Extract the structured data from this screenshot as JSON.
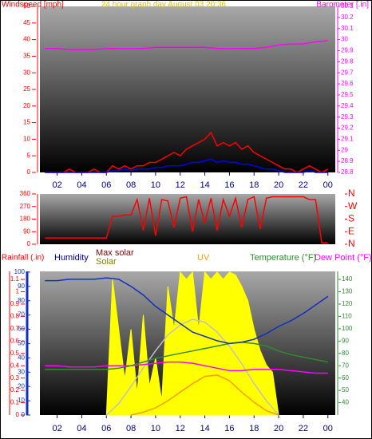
{
  "chart_data": [
    {
      "type": "line",
      "title": "24 hour graph day    August 03 20:36",
      "ylabel": "Windspeed [mph]",
      "y2label": "Barometer [.in]",
      "x": [
        1,
        1.5,
        2,
        2.5,
        3,
        3.5,
        4,
        4.5,
        5,
        5.5,
        6,
        6.5,
        7,
        7.5,
        8,
        8.5,
        9,
        9.5,
        10,
        10.5,
        11,
        11.5,
        12,
        12.5,
        13,
        13.5,
        14,
        14.5,
        15,
        15.5,
        16,
        16.5,
        17,
        17.5,
        18,
        18.5,
        19,
        19.5,
        20,
        20.5,
        21,
        21.5,
        22,
        22.5,
        23,
        23.5,
        24
      ],
      "xlim": [
        0.6,
        24.6
      ],
      "xticks": [
        {
          "value": 2,
          "label": "02"
        },
        {
          "value": 4,
          "label": "04"
        },
        {
          "value": 6,
          "label": "06"
        },
        {
          "value": 8,
          "label": "08"
        },
        10,
        12,
        14,
        16,
        18,
        20,
        22,
        {
          "value": 24,
          "label": "00"
        }
      ],
      "ylim": [
        0,
        50
      ],
      "yticks": [
        0,
        5,
        10,
        15,
        20,
        25,
        30,
        35,
        40,
        45,
        50
      ],
      "y2lim": [
        28.8,
        30.3
      ],
      "y2ticks": [
        28.8,
        28.9,
        29,
        29.1,
        29.2,
        29.3,
        29.4,
        29.5,
        29.6,
        29.7,
        29.8,
        29.9,
        30,
        30.1,
        30.2,
        30.3
      ],
      "series": [
        {
          "color": "#ff0000",
          "values": [
            0,
            0,
            0,
            0,
            1,
            0,
            0,
            0,
            1,
            0,
            0,
            2,
            1,
            2,
            1,
            2,
            2,
            3,
            3,
            4,
            5,
            6,
            5,
            7,
            8,
            9,
            10,
            12,
            8,
            9,
            8,
            9,
            7,
            8,
            6,
            5,
            4,
            3,
            2,
            1,
            1,
            0,
            1,
            2,
            1,
            0,
            1
          ]
        },
        {
          "color": "#0000ff",
          "values": [
            0,
            0,
            0,
            0,
            0,
            0,
            0,
            0,
            0,
            0,
            0,
            0.5,
            0.5,
            1,
            0.5,
            1,
            1,
            1,
            1.5,
            1.5,
            2,
            2,
            2,
            2.5,
            3,
            3,
            3.5,
            4,
            3,
            3.5,
            3,
            3,
            2.5,
            2.5,
            2,
            1.5,
            1,
            1,
            0.5,
            0,
            0,
            0,
            0,
            0.5,
            0,
            0,
            0
          ]
        },
        {
          "color": "#ff00ff",
          "axis": "y2",
          "x": [
            1,
            2,
            3,
            4,
            5,
            6,
            7,
            8,
            9,
            10,
            11,
            12,
            13,
            14,
            15,
            16,
            17,
            18,
            19,
            20,
            21,
            22,
            23,
            24
          ],
          "values": [
            29.92,
            29.92,
            29.91,
            29.91,
            29.91,
            29.92,
            29.92,
            29.92,
            29.92,
            29.93,
            29.93,
            29.93,
            29.93,
            29.93,
            29.92,
            29.92,
            29.92,
            29.92,
            29.93,
            29.95,
            29.96,
            29.96,
            29.98,
            29.99
          ]
        }
      ]
    },
    {
      "type": "line",
      "x": [
        1,
        1.5,
        2,
        2.5,
        3,
        3.5,
        4,
        4.5,
        5,
        5.5,
        6,
        6.5,
        7,
        7.5,
        8,
        8.5,
        9,
        9.5,
        10,
        10.5,
        11,
        11.5,
        12,
        12.5,
        13,
        13.5,
        14,
        14.5,
        15,
        15.5,
        16,
        16.5,
        17,
        17.5,
        18,
        18.5,
        19,
        19.5,
        20,
        20.5,
        21,
        21.5,
        22,
        22.5,
        23,
        23.5,
        24
      ],
      "xlim": [
        0.6,
        24.6
      ],
      "ylim": [
        0,
        360
      ],
      "yticks": [
        0,
        90,
        180,
        270,
        360
      ],
      "y2lim": [
        0,
        360
      ],
      "y2ticks": [
        {
          "value": 0,
          "label": "N"
        },
        {
          "value": 90,
          "label": "E"
        },
        {
          "value": 180,
          "label": "S"
        },
        {
          "value": 270,
          "label": "W"
        },
        {
          "value": 360,
          "label": "N"
        }
      ],
      "series": [
        {
          "color": "#ff0000",
          "values": [
            45,
            45,
            45,
            45,
            45,
            45,
            45,
            45,
            45,
            45,
            45,
            200,
            200,
            210,
            210,
            320,
            100,
            330,
            60,
            320,
            310,
            120,
            330,
            340,
            90,
            320,
            150,
            330,
            100,
            320,
            200,
            330,
            120,
            320,
            340,
            110,
            330,
            340,
            340,
            340,
            340,
            340,
            340,
            320,
            320,
            10,
            10
          ]
        }
      ]
    },
    {
      "type": "line",
      "ylabel": "Rainfall (.in)",
      "x": [
        1,
        2,
        3,
        4,
        5,
        6,
        7,
        8,
        9,
        10,
        11,
        12,
        13,
        14,
        15,
        16,
        17,
        18,
        19,
        20,
        21,
        22,
        23,
        24
      ],
      "xlim": [
        0.6,
        24.6
      ],
      "xticks": [
        {
          "value": 2,
          "label": "02"
        },
        {
          "value": 4,
          "label": "04"
        },
        {
          "value": 6,
          "label": "06"
        },
        {
          "value": 8,
          "label": "08"
        },
        10,
        12,
        14,
        16,
        18,
        20,
        22,
        {
          "value": 24,
          "label": "00"
        }
      ],
      "ylim": [
        0,
        1.165
      ],
      "yticks": [
        0,
        0.1,
        0.2,
        0.3,
        0.4,
        0.5,
        0.6,
        0.7,
        0.8,
        0.9,
        1,
        1.1
      ],
      "y3lim": [
        0,
        100.5
      ],
      "y3ticks": [
        0,
        10,
        20,
        30,
        40,
        50,
        60,
        70,
        80,
        90,
        100
      ],
      "y2lim": [
        30,
        146.5
      ],
      "y2ticks": [
        40,
        50,
        60,
        70,
        80,
        90,
        100,
        110,
        120,
        130,
        140
      ],
      "series": [
        {
          "name": "Solar",
          "type": "area",
          "color": "#ffff00",
          "axis": "y3",
          "x": [
            6,
            6.5,
            7,
            7.5,
            8,
            8.5,
            9,
            9.5,
            10,
            10.5,
            11,
            11.5,
            12,
            12.5,
            13,
            13.5,
            14,
            14.5,
            15,
            15.5,
            16,
            16.5,
            17,
            17.5,
            18,
            18.5,
            19,
            19.5,
            20
          ],
          "values": [
            0,
            95,
            60,
            25,
            60,
            15,
            70,
            20,
            40,
            10,
            90,
            60,
            100,
            95,
            100,
            60,
            100,
            95,
            100,
            95,
            100,
            98,
            90,
            80,
            60,
            45,
            35,
            30,
            0
          ]
        },
        {
          "name": "Max solar",
          "color": "#c0c0c0",
          "axis": "y3",
          "x": [
            6,
            7,
            8,
            9,
            10,
            11,
            12,
            13,
            14,
            15,
            16,
            17,
            18,
            19,
            20
          ],
          "values": [
            0,
            8,
            20,
            33,
            45,
            56,
            63,
            67,
            65,
            58,
            48,
            36,
            22,
            10,
            0
          ]
        },
        {
          "name": "UV",
          "color": "#ff9900",
          "axis": "y3",
          "x": [
            8,
            9,
            10,
            11,
            12,
            13,
            14,
            15,
            16,
            17,
            18,
            19,
            20
          ],
          "values": [
            0,
            2,
            5,
            10,
            16,
            22,
            27,
            28,
            24,
            16,
            9,
            3,
            0
          ]
        },
        {
          "name": "Dew Point (°F)",
          "color": "#ff00ff",
          "axis": "y2",
          "values": [
            70,
            70,
            69,
            69,
            69,
            70,
            70,
            70,
            71,
            72,
            73,
            73,
            72,
            70,
            68,
            66,
            66,
            67,
            67,
            67,
            66,
            65,
            64,
            64
          ]
        },
        {
          "name": "Temperature (°F)",
          "color": "#2e8b2e",
          "axis": "y2",
          "values": [
            67,
            67,
            67,
            67,
            67,
            67,
            68,
            70,
            73,
            76,
            78,
            80,
            82,
            84,
            86,
            88,
            89,
            88,
            86,
            82,
            79,
            77,
            75,
            73
          ]
        },
        {
          "name": "Humidity",
          "color": "#1030c0",
          "axis": "y3",
          "values": [
            94,
            94,
            95,
            95,
            95,
            96,
            95,
            90,
            84,
            76,
            70,
            64,
            58,
            55,
            52,
            50,
            51,
            53,
            57,
            62,
            66,
            71,
            77,
            83
          ]
        }
      ]
    }
  ]
}
